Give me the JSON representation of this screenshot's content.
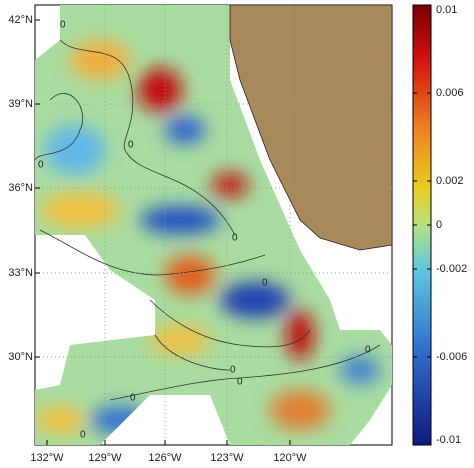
{
  "map": {
    "xticks": [
      "132°W",
      "129°W",
      "126°W",
      "123°W",
      "120°W"
    ],
    "yticks": [
      "42°N",
      "39°N",
      "36°N",
      "33°N",
      "30°N"
    ],
    "contour_label": "0",
    "colorbar": {
      "clim": [
        -0.01,
        0.01
      ],
      "ticks": [
        0.01,
        0.006,
        0.002,
        0,
        -0.002,
        -0.006,
        -0.01
      ]
    }
  }
}
